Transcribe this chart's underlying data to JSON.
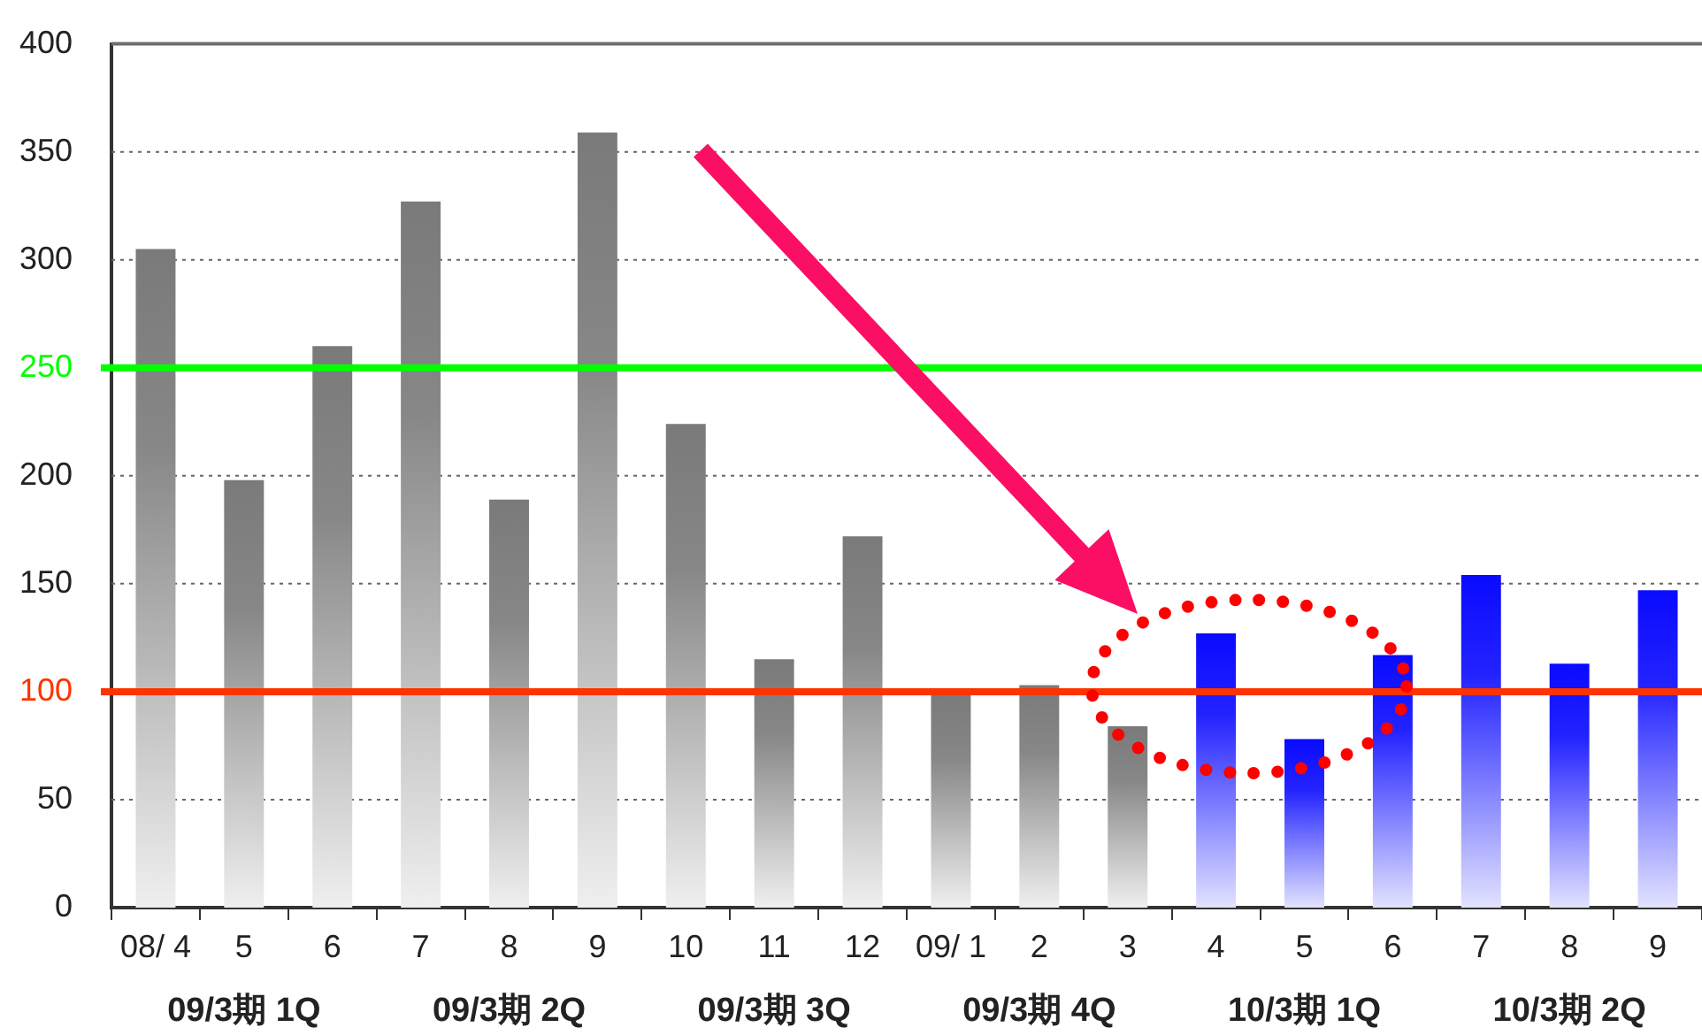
{
  "chart_data": {
    "type": "bar",
    "categories": [
      "08/ 4",
      "5",
      "6",
      "7",
      "8",
      "9",
      "10",
      "11",
      "12",
      "09/ 1",
      "2",
      "3",
      "4",
      "5",
      "6",
      "7",
      "8",
      "9"
    ],
    "values": [
      305,
      198,
      260,
      327,
      189,
      359,
      224,
      115,
      172,
      99,
      103,
      84,
      127,
      78,
      117,
      154,
      113,
      147
    ],
    "colors": [
      "#7a7a7a",
      "#7a7a7a",
      "#7a7a7a",
      "#7a7a7a",
      "#7a7a7a",
      "#7a7a7a",
      "#7a7a7a",
      "#7a7a7a",
      "#7a7a7a",
      "#7a7a7a",
      "#7a7a7a",
      "#7a7a7a",
      "#0a0aff",
      "#0a0aff",
      "#0a0aff",
      "#0a0aff",
      "#0a0aff",
      "#0a0aff"
    ],
    "ylim": [
      0,
      400
    ],
    "yticks": [
      0,
      50,
      100,
      150,
      200,
      250,
      300,
      350,
      400
    ],
    "grid": "y",
    "ref_lines": [
      {
        "axis": "y",
        "value": 250,
        "color": "#00ff00"
      },
      {
        "axis": "y",
        "value": 100,
        "color": "#ff3300"
      }
    ],
    "annotations": [
      "09/3期 1Q",
      "09/3期 2Q",
      "09/3期 3Q",
      "09/3期 4Q",
      "10/3期 1Q",
      "10/3期 2Q"
    ]
  }
}
